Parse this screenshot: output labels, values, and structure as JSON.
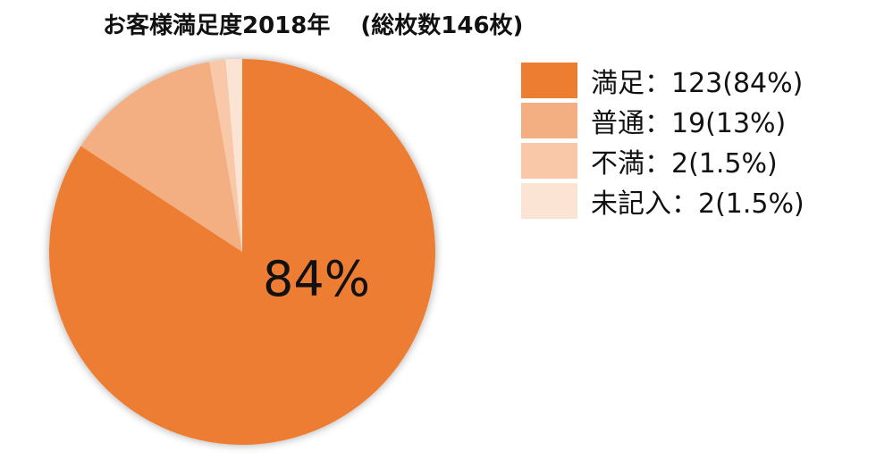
{
  "chart_data": {
    "type": "pie",
    "title": "お客様満足度2018年",
    "subtitle": "(総枚数146枚)",
    "categories": [
      "満足",
      "普通",
      "不満",
      "未記入"
    ],
    "values": [
      123,
      19,
      2,
      2
    ],
    "percent_labels": [
      "84%",
      "13%",
      "1.5%",
      "1.5%"
    ],
    "legend_labels": [
      "満足：123(84%)",
      "普通：19(13%)",
      "不満：2(1.5%)",
      "未記入：2(1.5%)"
    ],
    "colors": [
      "#ED7D31",
      "#F3AE82",
      "#F8C8A9",
      "#FCE4D5"
    ],
    "slice_data_label": "84%",
    "legend_position": "top-right"
  }
}
